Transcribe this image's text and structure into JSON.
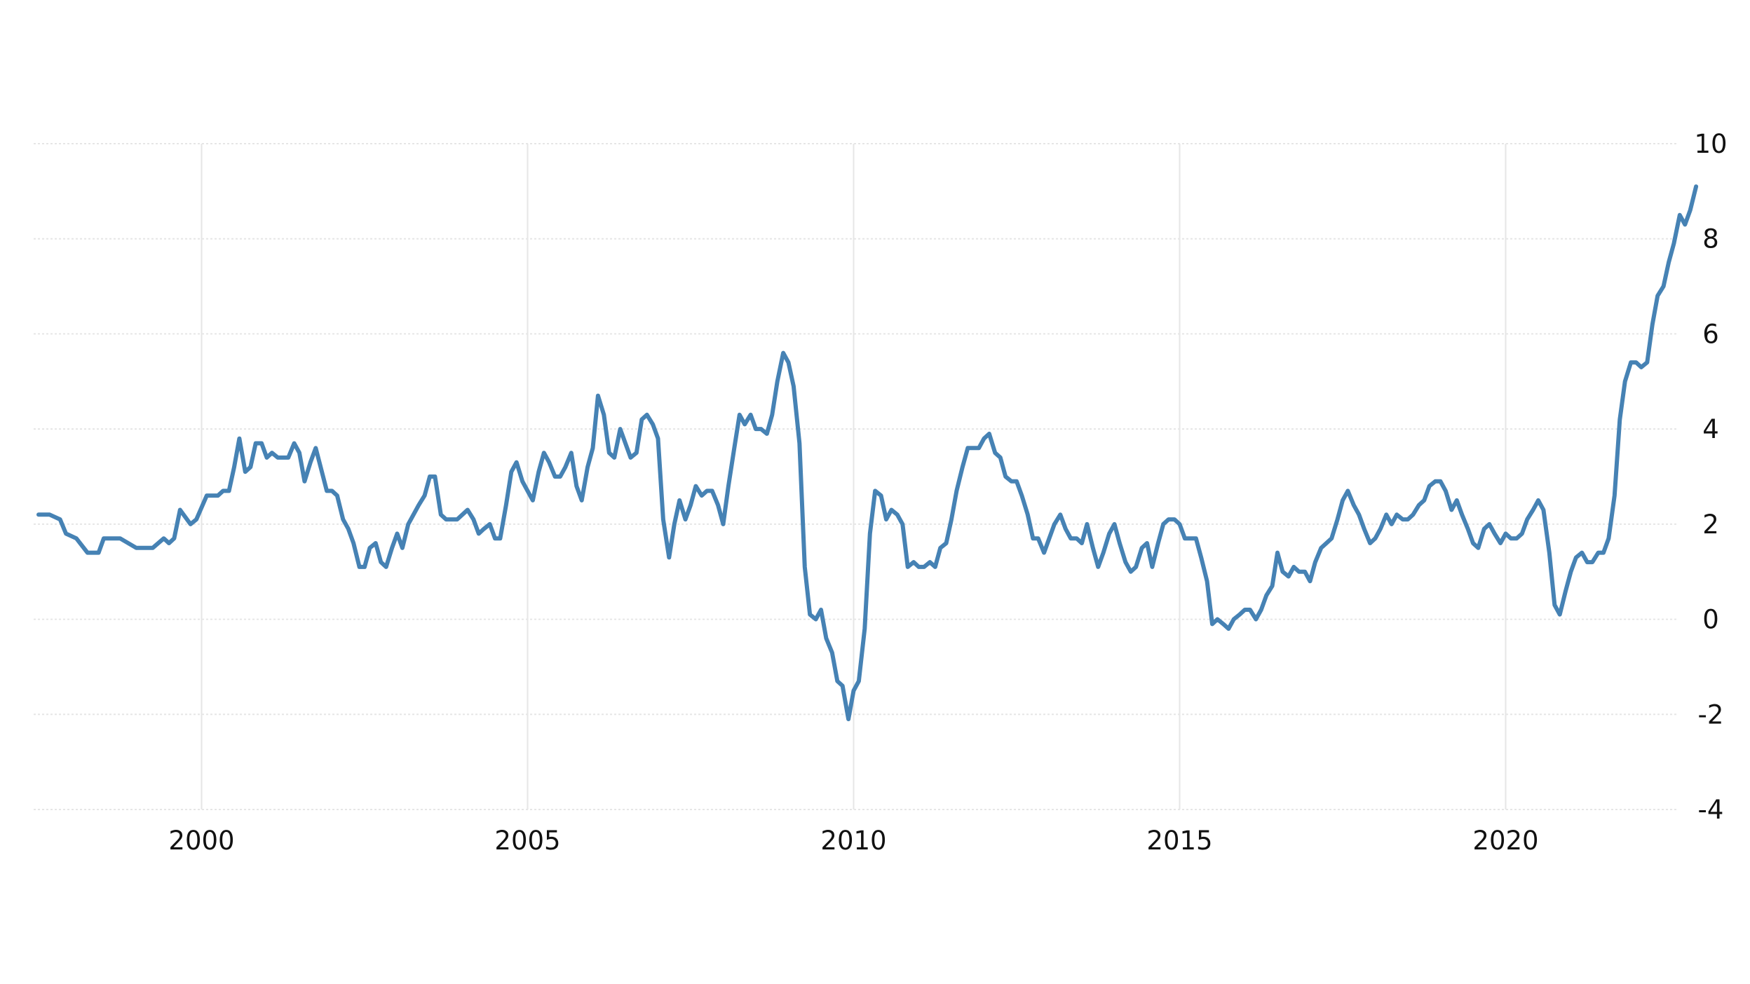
{
  "chart_data": {
    "type": "line",
    "title": "",
    "xlabel": "",
    "ylabel": "",
    "x_ticks": [
      "2000",
      "2005",
      "2010",
      "2015",
      "2020"
    ],
    "y_ticks": [
      "10",
      "8",
      "6",
      "4",
      "2",
      "0",
      "-2",
      "-4"
    ],
    "xlim": [
      1997.5,
      2022.5
    ],
    "ylim": [
      -4,
      10
    ],
    "grid": true,
    "y_axis_side": "right",
    "legend": "none",
    "line_color": "#4682b4",
    "grid_color": "#e6e6e6",
    "series": [
      {
        "points": [
          [
            1997.5,
            2.2
          ],
          [
            1997.67,
            2.2
          ],
          [
            1997.83,
            2.1
          ],
          [
            1997.92,
            1.8
          ],
          [
            1998.08,
            1.7
          ],
          [
            1998.25,
            1.4
          ],
          [
            1998.42,
            1.4
          ],
          [
            1998.5,
            1.7
          ],
          [
            1998.75,
            1.7
          ],
          [
            1999.0,
            1.5
          ],
          [
            1999.25,
            1.5
          ],
          [
            1999.42,
            1.7
          ],
          [
            1999.5,
            1.6
          ],
          [
            1999.58,
            1.7
          ],
          [
            1999.67,
            2.3
          ],
          [
            1999.83,
            2.0
          ],
          [
            1999.92,
            2.1
          ],
          [
            2000.08,
            2.6
          ],
          [
            2000.25,
            2.6
          ],
          [
            2000.33,
            2.7
          ],
          [
            2000.42,
            2.7
          ],
          [
            2000.5,
            3.2
          ],
          [
            2000.58,
            3.8
          ],
          [
            2000.67,
            3.1
          ],
          [
            2000.75,
            3.2
          ],
          [
            2000.83,
            3.7
          ],
          [
            2000.92,
            3.7
          ],
          [
            2001.0,
            3.4
          ],
          [
            2001.08,
            3.5
          ],
          [
            2001.17,
            3.4
          ],
          [
            2001.33,
            3.4
          ],
          [
            2001.42,
            3.7
          ],
          [
            2001.5,
            3.5
          ],
          [
            2001.58,
            2.9
          ],
          [
            2001.67,
            3.3
          ],
          [
            2001.75,
            3.6
          ],
          [
            2001.92,
            2.7
          ],
          [
            2002.0,
            2.7
          ],
          [
            2002.08,
            2.6
          ],
          [
            2002.17,
            2.1
          ],
          [
            2002.25,
            1.9
          ],
          [
            2002.33,
            1.6
          ],
          [
            2002.42,
            1.1
          ],
          [
            2002.5,
            1.1
          ],
          [
            2002.58,
            1.5
          ],
          [
            2002.67,
            1.6
          ],
          [
            2002.75,
            1.2
          ],
          [
            2002.83,
            1.1
          ],
          [
            2002.92,
            1.5
          ],
          [
            2003.0,
            1.8
          ],
          [
            2003.08,
            1.5
          ],
          [
            2003.17,
            2.0
          ],
          [
            2003.33,
            2.4
          ],
          [
            2003.42,
            2.6
          ],
          [
            2003.5,
            3.0
          ],
          [
            2003.58,
            3.0
          ],
          [
            2003.67,
            2.2
          ],
          [
            2003.75,
            2.1
          ],
          [
            2003.92,
            2.1
          ],
          [
            2004.08,
            2.3
          ],
          [
            2004.17,
            2.1
          ],
          [
            2004.25,
            1.8
          ],
          [
            2004.33,
            1.9
          ],
          [
            2004.42,
            2.0
          ],
          [
            2004.5,
            1.7
          ],
          [
            2004.58,
            1.7
          ],
          [
            2004.67,
            2.4
          ],
          [
            2004.75,
            3.1
          ],
          [
            2004.83,
            3.3
          ],
          [
            2004.92,
            2.9
          ],
          [
            2005.0,
            2.7
          ],
          [
            2005.08,
            2.5
          ],
          [
            2005.17,
            3.1
          ],
          [
            2005.25,
            3.5
          ],
          [
            2005.33,
            3.3
          ],
          [
            2005.42,
            3.0
          ],
          [
            2005.5,
            3.0
          ],
          [
            2005.58,
            3.2
          ],
          [
            2005.67,
            3.5
          ],
          [
            2005.75,
            2.8
          ],
          [
            2005.83,
            2.5
          ],
          [
            2005.92,
            3.2
          ],
          [
            2006.0,
            3.6
          ],
          [
            2006.08,
            4.7
          ],
          [
            2006.17,
            4.3
          ],
          [
            2006.25,
            3.5
          ],
          [
            2006.33,
            3.4
          ],
          [
            2006.42,
            4.0
          ],
          [
            2006.5,
            3.7
          ],
          [
            2006.58,
            3.4
          ],
          [
            2006.67,
            3.5
          ],
          [
            2006.75,
            4.2
          ],
          [
            2006.83,
            4.3
          ],
          [
            2006.92,
            4.1
          ],
          [
            2007.0,
            3.8
          ],
          [
            2007.08,
            2.1
          ],
          [
            2007.17,
            1.3
          ],
          [
            2007.25,
            2.0
          ],
          [
            2007.33,
            2.5
          ],
          [
            2007.42,
            2.1
          ],
          [
            2007.5,
            2.4
          ],
          [
            2007.58,
            2.8
          ],
          [
            2007.67,
            2.6
          ],
          [
            2007.75,
            2.7
          ],
          [
            2007.83,
            2.7
          ],
          [
            2007.92,
            2.4
          ],
          [
            2008.0,
            2.0
          ],
          [
            2008.08,
            2.8
          ],
          [
            2008.17,
            3.6
          ],
          [
            2008.25,
            4.3
          ],
          [
            2008.33,
            4.1
          ],
          [
            2008.42,
            4.3
          ],
          [
            2008.5,
            4.0
          ],
          [
            2008.58,
            4.0
          ],
          [
            2008.67,
            3.9
          ],
          [
            2008.75,
            4.3
          ],
          [
            2008.83,
            5.0
          ],
          [
            2008.92,
            5.6
          ],
          [
            2009.0,
            5.4
          ],
          [
            2009.08,
            4.9
          ],
          [
            2009.17,
            3.7
          ],
          [
            2009.25,
            1.1
          ],
          [
            2009.33,
            0.1
          ],
          [
            2009.42,
            0.0
          ],
          [
            2009.5,
            0.2
          ],
          [
            2009.58,
            -0.4
          ],
          [
            2009.67,
            -0.7
          ],
          [
            2009.75,
            -1.3
          ],
          [
            2009.83,
            -1.4
          ],
          [
            2009.92,
            -2.1
          ],
          [
            2010.0,
            -1.5
          ],
          [
            2010.08,
            -1.3
          ],
          [
            2010.17,
            -0.2
          ],
          [
            2010.25,
            1.8
          ],
          [
            2010.33,
            2.7
          ],
          [
            2010.42,
            2.6
          ],
          [
            2010.5,
            2.1
          ],
          [
            2010.58,
            2.3
          ],
          [
            2010.67,
            2.2
          ],
          [
            2010.75,
            2.0
          ],
          [
            2010.83,
            1.1
          ],
          [
            2010.92,
            1.2
          ],
          [
            2011.0,
            1.1
          ],
          [
            2011.08,
            1.1
          ],
          [
            2011.17,
            1.2
          ],
          [
            2011.25,
            1.1
          ],
          [
            2011.33,
            1.5
          ],
          [
            2011.42,
            1.6
          ],
          [
            2011.5,
            2.1
          ],
          [
            2011.58,
            2.7
          ],
          [
            2011.67,
            3.2
          ],
          [
            2011.75,
            3.6
          ],
          [
            2011.83,
            3.6
          ],
          [
            2011.92,
            3.6
          ],
          [
            2012.0,
            3.8
          ],
          [
            2012.08,
            3.9
          ],
          [
            2012.17,
            3.5
          ],
          [
            2012.25,
            3.4
          ],
          [
            2012.33,
            3.0
          ],
          [
            2012.42,
            2.9
          ],
          [
            2012.5,
            2.9
          ],
          [
            2012.58,
            2.6
          ],
          [
            2012.67,
            2.2
          ],
          [
            2012.75,
            1.7
          ],
          [
            2012.83,
            1.7
          ],
          [
            2012.92,
            1.4
          ],
          [
            2013.0,
            1.7
          ],
          [
            2013.08,
            2.0
          ],
          [
            2013.17,
            2.2
          ],
          [
            2013.25,
            1.9
          ],
          [
            2013.33,
            1.7
          ],
          [
            2013.42,
            1.7
          ],
          [
            2013.5,
            1.6
          ],
          [
            2013.58,
            2.0
          ],
          [
            2013.67,
            1.5
          ],
          [
            2013.75,
            1.1
          ],
          [
            2013.83,
            1.4
          ],
          [
            2013.92,
            1.8
          ],
          [
            2014.0,
            2.0
          ],
          [
            2014.08,
            1.6
          ],
          [
            2014.17,
            1.2
          ],
          [
            2014.25,
            1.0
          ],
          [
            2014.33,
            1.1
          ],
          [
            2014.42,
            1.5
          ],
          [
            2014.5,
            1.6
          ],
          [
            2014.58,
            1.1
          ],
          [
            2014.67,
            1.6
          ],
          [
            2014.75,
            2.0
          ],
          [
            2014.83,
            2.1
          ],
          [
            2014.92,
            2.1
          ],
          [
            2015.0,
            2.0
          ],
          [
            2015.08,
            1.7
          ],
          [
            2015.17,
            1.7
          ],
          [
            2015.25,
            1.7
          ],
          [
            2015.33,
            1.3
          ],
          [
            2015.42,
            0.8
          ],
          [
            2015.5,
            -0.1
          ],
          [
            2015.58,
            0.0
          ],
          [
            2015.67,
            -0.1
          ],
          [
            2015.75,
            -0.2
          ],
          [
            2015.83,
            0.0
          ],
          [
            2015.92,
            0.1
          ],
          [
            2016.0,
            0.2
          ],
          [
            2016.08,
            0.2
          ],
          [
            2016.17,
            0.0
          ],
          [
            2016.25,
            0.2
          ],
          [
            2016.33,
            0.5
          ],
          [
            2016.42,
            0.7
          ],
          [
            2016.5,
            1.4
          ],
          [
            2016.58,
            1.0
          ],
          [
            2016.67,
            0.9
          ],
          [
            2016.75,
            1.1
          ],
          [
            2016.83,
            1.0
          ],
          [
            2016.92,
            1.0
          ],
          [
            2017.0,
            0.8
          ],
          [
            2017.08,
            1.2
          ],
          [
            2017.17,
            1.5
          ],
          [
            2017.25,
            1.6
          ],
          [
            2017.33,
            1.7
          ],
          [
            2017.42,
            2.1
          ],
          [
            2017.5,
            2.5
          ],
          [
            2017.58,
            2.7
          ],
          [
            2017.67,
            2.4
          ],
          [
            2017.75,
            2.2
          ],
          [
            2017.83,
            1.9
          ],
          [
            2017.92,
            1.6
          ],
          [
            2018.0,
            1.7
          ],
          [
            2018.08,
            1.9
          ],
          [
            2018.17,
            2.2
          ],
          [
            2018.25,
            2.0
          ],
          [
            2018.33,
            2.2
          ],
          [
            2018.42,
            2.1
          ],
          [
            2018.5,
            2.1
          ],
          [
            2018.58,
            2.2
          ],
          [
            2018.67,
            2.4
          ],
          [
            2018.75,
            2.5
          ],
          [
            2018.83,
            2.8
          ],
          [
            2018.92,
            2.9
          ],
          [
            2019.0,
            2.9
          ],
          [
            2019.08,
            2.7
          ],
          [
            2019.17,
            2.3
          ],
          [
            2019.25,
            2.5
          ],
          [
            2019.33,
            2.2
          ],
          [
            2019.42,
            1.9
          ],
          [
            2019.5,
            1.6
          ],
          [
            2019.58,
            1.5
          ],
          [
            2019.67,
            1.9
          ],
          [
            2019.75,
            2.0
          ],
          [
            2019.83,
            1.8
          ],
          [
            2019.92,
            1.6
          ],
          [
            2020.0,
            1.8
          ],
          [
            2020.08,
            1.7
          ],
          [
            2020.17,
            1.7
          ],
          [
            2020.25,
            1.8
          ],
          [
            2020.33,
            2.1
          ],
          [
            2020.42,
            2.3
          ],
          [
            2020.5,
            2.5
          ],
          [
            2020.58,
            2.3
          ],
          [
            2020.67,
            1.4
          ],
          [
            2020.75,
            0.3
          ],
          [
            2020.83,
            0.1
          ],
          [
            2020.92,
            0.6
          ],
          [
            2021.0,
            1.0
          ],
          [
            2021.08,
            1.3
          ],
          [
            2021.17,
            1.4
          ],
          [
            2021.25,
            1.2
          ],
          [
            2021.33,
            1.2
          ],
          [
            2021.42,
            1.4
          ],
          [
            2021.5,
            1.4
          ],
          [
            2021.58,
            1.7
          ],
          [
            2021.67,
            2.6
          ],
          [
            2021.75,
            4.2
          ],
          [
            2021.83,
            5.0
          ],
          [
            2021.92,
            5.4
          ],
          [
            2022.0,
            5.4
          ],
          [
            2022.08,
            5.3
          ],
          [
            2022.17,
            5.4
          ],
          [
            2022.25,
            6.2
          ],
          [
            2022.33,
            6.8
          ],
          [
            2022.42,
            7.0
          ],
          [
            2022.5,
            7.5
          ],
          [
            2022.58,
            7.9
          ],
          [
            2022.67,
            8.5
          ],
          [
            2022.75,
            8.3
          ],
          [
            2022.83,
            8.6
          ],
          [
            2022.92,
            9.1
          ]
        ]
      }
    ]
  }
}
